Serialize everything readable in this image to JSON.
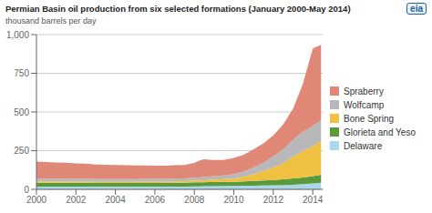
{
  "chart_data": {
    "type": "area",
    "stacked": true,
    "title": "Permian Basin oil production from six selected formations (January 2000-May 2014)",
    "subtitle": "thousand barrels per day",
    "annotations": [
      "eia"
    ],
    "x": [
      2000,
      2000.5,
      2001,
      2001.5,
      2002,
      2002.5,
      2003,
      2003.5,
      2004,
      2004.5,
      2005,
      2005.5,
      2006,
      2006.5,
      2007,
      2007.5,
      2008,
      2008.25,
      2008.5,
      2008.75,
      2009,
      2009.5,
      2010,
      2010.5,
      2011,
      2011.5,
      2012,
      2012.5,
      2013,
      2013.5,
      2014,
      2014.42
    ],
    "series": [
      {
        "name": "Delaware",
        "color": "#a8d8ea",
        "values": [
          18,
          18,
          18,
          18,
          17,
          17,
          17,
          17,
          17,
          17,
          17,
          17,
          17,
          17,
          17,
          18,
          19,
          19,
          20,
          21,
          21,
          22,
          22,
          23,
          24,
          25,
          26,
          27,
          30,
          34,
          38,
          42
        ]
      },
      {
        "name": "Glorieta and Yeso",
        "color": "#5b9a3c",
        "values": [
          25,
          25,
          25,
          25,
          25,
          25,
          24,
          24,
          24,
          24,
          24,
          24,
          24,
          24,
          25,
          25,
          26,
          26,
          26,
          26,
          26,
          26,
          27,
          28,
          30,
          32,
          35,
          37,
          40,
          43,
          47,
          52
        ]
      },
      {
        "name": "Bone Spring",
        "color": "#f0c040",
        "values": [
          8,
          8,
          8,
          8,
          8,
          8,
          8,
          8,
          8,
          8,
          8,
          9,
          9,
          9,
          10,
          10,
          11,
          12,
          13,
          14,
          16,
          18,
          22,
          30,
          45,
          60,
          80,
          105,
          140,
          170,
          195,
          215
        ]
      },
      {
        "name": "Wolfcamp",
        "color": "#b8b8b8",
        "values": [
          18,
          18,
          18,
          18,
          18,
          18,
          17,
          17,
          17,
          17,
          17,
          17,
          17,
          17,
          18,
          18,
          19,
          20,
          21,
          22,
          22,
          24,
          27,
          33,
          42,
          55,
          72,
          90,
          110,
          125,
          130,
          135
        ]
      },
      {
        "name": "Spraberry",
        "color": "#e08878",
        "values": [
          110,
          108,
          105,
          103,
          100,
          98,
          95,
          93,
          91,
          90,
          88,
          87,
          86,
          86,
          86,
          87,
          95,
          108,
          115,
          108,
          105,
          100,
          105,
          110,
          118,
          125,
          135,
          160,
          200,
          310,
          500,
          490
        ]
      }
    ],
    "xlim": [
      2000,
      2014.5
    ],
    "xticks": [
      2000,
      2002,
      2004,
      2006,
      2008,
      2010,
      2012,
      2014
    ],
    "ylim": [
      0,
      1000
    ],
    "yticks": [
      0,
      250,
      500,
      750,
      {
        "value": 1000,
        "label": "1,000"
      }
    ],
    "grid": true
  }
}
